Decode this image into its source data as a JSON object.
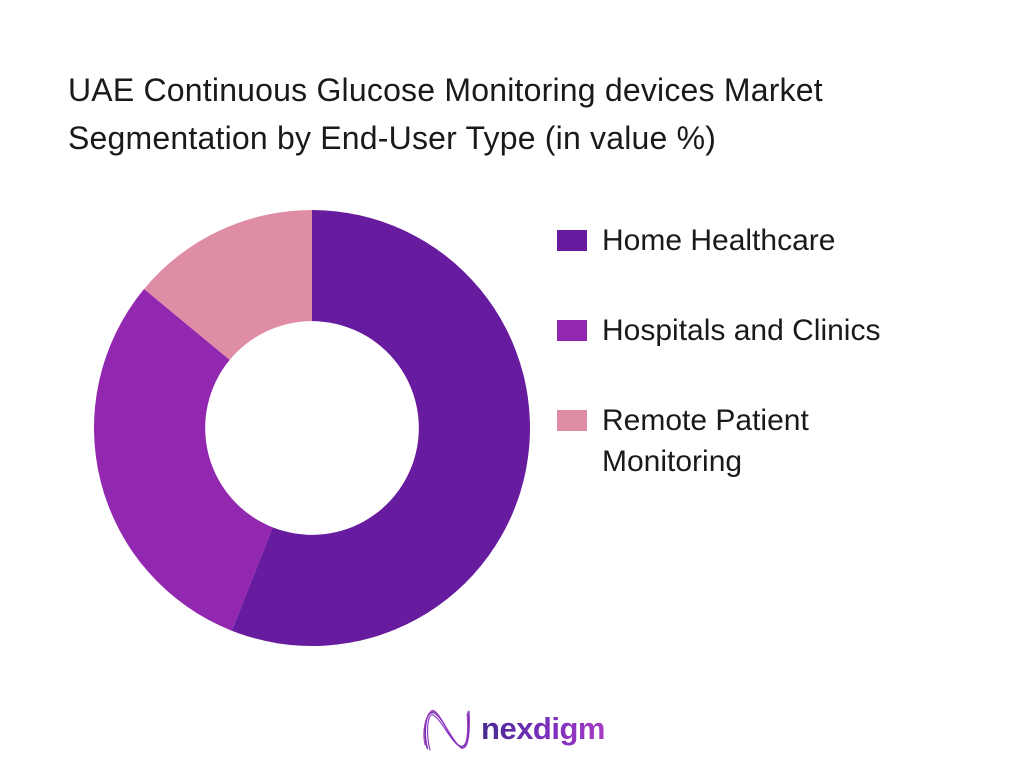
{
  "title": {
    "lines": [
      "UAE Continuous Glucose Monitoring devices Market",
      "Segmentation by End-User Type (in value %)"
    ]
  },
  "chart_data": {
    "type": "pie",
    "subtype": "donut",
    "title": "UAE Continuous Glucose Monitoring devices Market Segmentation by End-User Type (in value %)",
    "categories": [
      "Home Healthcare",
      "Hospitals and Clinics",
      "Remote Patient Monitoring"
    ],
    "values": [
      56,
      30,
      14
    ],
    "unit": "%",
    "colors": [
      "#671CA0",
      "#9227B0",
      "#DF8CA5"
    ],
    "start_angle_deg": -90,
    "direction": "clockwise",
    "inner_radius_ratio": 0.49,
    "legend_position": "right",
    "data_labels_shown": false
  },
  "legend": {
    "items": [
      {
        "label": "Home Healthcare",
        "color": "#671CA0"
      },
      {
        "label": "Hospitals and Clinics",
        "color": "#9227B0"
      },
      {
        "label": "Remote Patient Monitoring",
        "color": "#DF8CA5"
      }
    ]
  },
  "footer": {
    "brand": "nexdigm",
    "logo_icon": "nexdigm-wave-n-icon",
    "gradient": [
      "#472B8F",
      "#7B2FBE",
      "#A83BC2"
    ]
  }
}
